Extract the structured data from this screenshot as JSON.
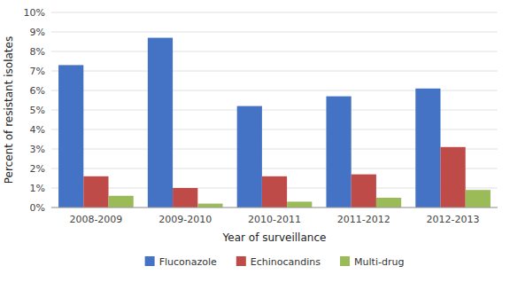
{
  "chart_data": {
    "type": "bar",
    "xlabel": "Year of surveillance",
    "ylabel": "Percent of resistant isolates",
    "categories": [
      "2008-2009",
      "2009-2010",
      "2010-2011",
      "2011-2012",
      "2012-2013"
    ],
    "series": [
      {
        "name": "Fluconazole",
        "color": "#4472C4",
        "values": [
          7.3,
          8.7,
          5.2,
          5.7,
          6.1
        ]
      },
      {
        "name": "Echinocandins",
        "color": "#BE4B48",
        "values": [
          1.6,
          1.0,
          1.6,
          1.7,
          3.1
        ]
      },
      {
        "name": "Multi-drug",
        "color": "#9BBB59",
        "values": [
          0.6,
          0.2,
          0.3,
          0.5,
          0.9
        ]
      }
    ],
    "ylim": [
      0,
      10
    ],
    "yticks": [
      {
        "value": 0,
        "label": "0%"
      },
      {
        "value": 1,
        "label": "1%"
      },
      {
        "value": 2,
        "label": "2%"
      },
      {
        "value": 3,
        "label": "3%"
      },
      {
        "value": 4,
        "label": "4%"
      },
      {
        "value": 5,
        "label": "5%"
      },
      {
        "value": 6,
        "label": "6%"
      },
      {
        "value": 7,
        "label": "7%"
      },
      {
        "value": 8,
        "label": "8%"
      },
      {
        "value": 9,
        "label": "9%"
      },
      {
        "value": 10,
        "label": "10%"
      }
    ],
    "grid": true,
    "legend": "bottom"
  }
}
